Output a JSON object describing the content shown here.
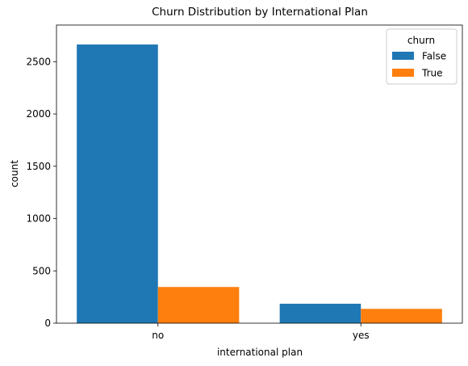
{
  "chart_data": {
    "type": "bar",
    "title": "Churn Distribution by International Plan",
    "xlabel": "international plan",
    "ylabel": "count",
    "categories": [
      "no",
      "yes"
    ],
    "series": [
      {
        "name": "False",
        "values": [
          2664,
          186
        ],
        "color": "#1f77b4"
      },
      {
        "name": "True",
        "values": [
          346,
          137
        ],
        "color": "#ff7f0e"
      }
    ],
    "ylim": [
      0,
      2850
    ],
    "yticks": [
      0,
      500,
      1000,
      1500,
      2000,
      2500
    ],
    "legend": {
      "title": "churn",
      "placement": "top-right"
    },
    "grid": false
  }
}
